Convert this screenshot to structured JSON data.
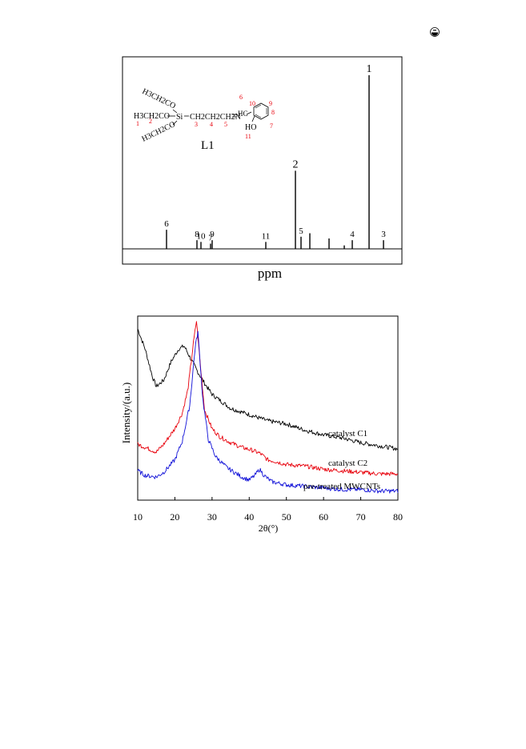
{
  "page": {
    "corner_icon": "circled-logo-icon"
  },
  "chart_data": [
    {
      "type": "line",
      "title": "",
      "xlabel": "ppm",
      "ylabel": "",
      "grid": false,
      "structure": {
        "label": "L1",
        "groups": [
          "H3CH2CO",
          "H3CH2CO",
          "H3CH2CO",
          "Si",
          "CH2CH2CH2N",
          "HC",
          "HO"
        ],
        "atom_numbers": [
          "1",
          "2",
          "3",
          "4",
          "5",
          "6",
          "7",
          "8",
          "9",
          "10",
          "11"
        ]
      },
      "peaks": [
        {
          "label": "6",
          "height": 0.11
        },
        {
          "label": "8",
          "height": 0.05
        },
        {
          "label": "10",
          "height": 0.04
        },
        {
          "label": "7",
          "height": 0.03
        },
        {
          "label": "9",
          "height": 0.05
        },
        {
          "label": "11",
          "height": 0.04
        },
        {
          "label": "2",
          "height": 0.45
        },
        {
          "label": "5",
          "height": 0.07
        },
        {
          "label": "",
          "height": 0.09
        },
        {
          "label": "",
          "height": 0.06
        },
        {
          "label": "",
          "height": 0.02
        },
        {
          "label": "4",
          "height": 0.05
        },
        {
          "label": "1",
          "height": 1.0
        },
        {
          "label": "3",
          "height": 0.05
        }
      ]
    },
    {
      "type": "line",
      "title": "",
      "xlabel": "2θ(°)",
      "ylabel": "Intensity/(a.u.)",
      "xlim": [
        10,
        80
      ],
      "xticks": [
        10,
        20,
        30,
        40,
        50,
        60,
        70,
        80
      ],
      "grid": false,
      "legend": "inline labels at right",
      "series": [
        {
          "name": "catalyst C1",
          "color": "#000000",
          "x": [
            10,
            12,
            14,
            15,
            17,
            19,
            21,
            22.5,
            24,
            26,
            28,
            30,
            35,
            40,
            45,
            50,
            55,
            60,
            65,
            70,
            75,
            80
          ],
          "y": [
            0.97,
            0.84,
            0.66,
            0.6,
            0.64,
            0.76,
            0.84,
            0.86,
            0.79,
            0.7,
            0.62,
            0.55,
            0.46,
            0.42,
            0.38,
            0.36,
            0.32,
            0.29,
            0.27,
            0.24,
            0.22,
            0.2
          ]
        },
        {
          "name": "catalyst C2",
          "color": "#e8000b",
          "x": [
            10,
            12,
            14,
            15,
            17,
            20,
            22,
            23.5,
            25,
            25.8,
            27,
            28,
            30,
            32,
            35,
            38,
            41,
            43,
            45,
            47,
            50,
            55,
            60,
            65,
            70,
            75,
            80
          ],
          "y": [
            0.23,
            0.21,
            0.19,
            0.18,
            0.23,
            0.33,
            0.43,
            0.58,
            0.88,
            1.02,
            0.7,
            0.45,
            0.33,
            0.28,
            0.24,
            0.21,
            0.19,
            0.17,
            0.13,
            0.12,
            0.1,
            0.09,
            0.07,
            0.06,
            0.05,
            0.04,
            0.04
          ]
        },
        {
          "name": "pre-treated MWCNTs",
          "color": "#1010d8",
          "x": [
            10,
            12,
            15,
            17,
            20,
            22,
            24,
            25.5,
            26.2,
            27.5,
            29,
            31,
            34,
            38,
            40,
            41.5,
            42.8,
            44,
            46,
            50,
            55,
            60,
            65,
            70,
            75,
            80
          ],
          "y": [
            0.06,
            0.03,
            0.02,
            0.05,
            0.13,
            0.25,
            0.48,
            0.86,
            0.95,
            0.52,
            0.26,
            0.15,
            0.08,
            0.02,
            0.0,
            0.03,
            0.07,
            0.03,
            -0.01,
            -0.03,
            -0.04,
            -0.05,
            -0.06,
            -0.06,
            -0.07,
            -0.07
          ]
        }
      ]
    }
  ]
}
